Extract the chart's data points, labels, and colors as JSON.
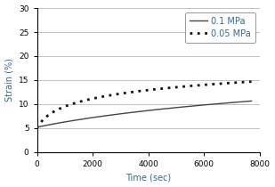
{
  "title": "",
  "xlabel": "Time (sec)",
  "ylabel": "Strain (%)",
  "xlim": [
    0,
    8000
  ],
  "ylim": [
    0,
    30
  ],
  "xticks": [
    0,
    2000,
    4000,
    6000,
    8000
  ],
  "yticks": [
    0,
    5,
    10,
    15,
    20,
    25,
    30
  ],
  "line1_label": "0.1 MPa",
  "line1_color": "#444444",
  "line2_label": "0.05 MPa",
  "line2_color": "#111111",
  "line1_params": {
    "a": 5.5,
    "b": 0.00022,
    "c": 5.2
  },
  "line2_params": {
    "a": 2.8,
    "b": 0.004,
    "c": 5.0
  },
  "background_color": "#ffffff",
  "legend_fontsize": 7,
  "axis_fontsize": 7,
  "tick_fontsize": 6.5,
  "label_color": "#336699",
  "grid_color": "#aaaaaa",
  "figsize": [
    3.09,
    2.1
  ],
  "dpi": 100
}
